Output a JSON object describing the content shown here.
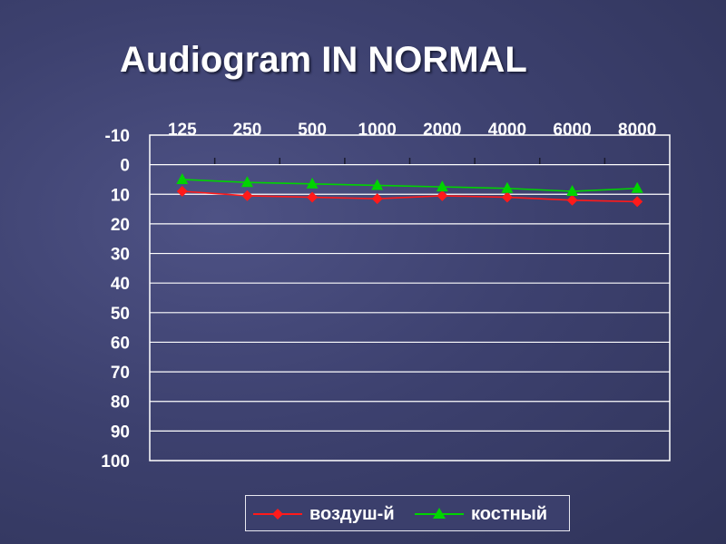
{
  "title": "Audiogram IN NORMAL",
  "colors": {
    "air": "#ff1a1a",
    "bone": "#00d400",
    "grid": "#ffffff",
    "text": "#ffffff"
  },
  "chart_data": {
    "type": "line",
    "categories": [
      "125",
      "250",
      "500",
      "1000",
      "2000",
      "4000",
      "6000",
      "8000"
    ],
    "ylim": [
      -10,
      100
    ],
    "yticks": [
      "-10",
      "0",
      "10",
      "20",
      "30",
      "40",
      "50",
      "60",
      "70",
      "80",
      "90",
      "100"
    ],
    "y_inverted": true,
    "x_axis_position": "top",
    "grid": true,
    "legend_position": "bottom",
    "series": [
      {
        "name": "воздуш-й",
        "marker": "diamond",
        "color": "#ff1a1a",
        "values": [
          9,
          10.5,
          11,
          11.5,
          10.5,
          11,
          12,
          12.5
        ]
      },
      {
        "name": "костный",
        "marker": "triangle",
        "color": "#00d400",
        "values": [
          5,
          6,
          6.5,
          7,
          7.5,
          8,
          9,
          8
        ]
      }
    ]
  }
}
